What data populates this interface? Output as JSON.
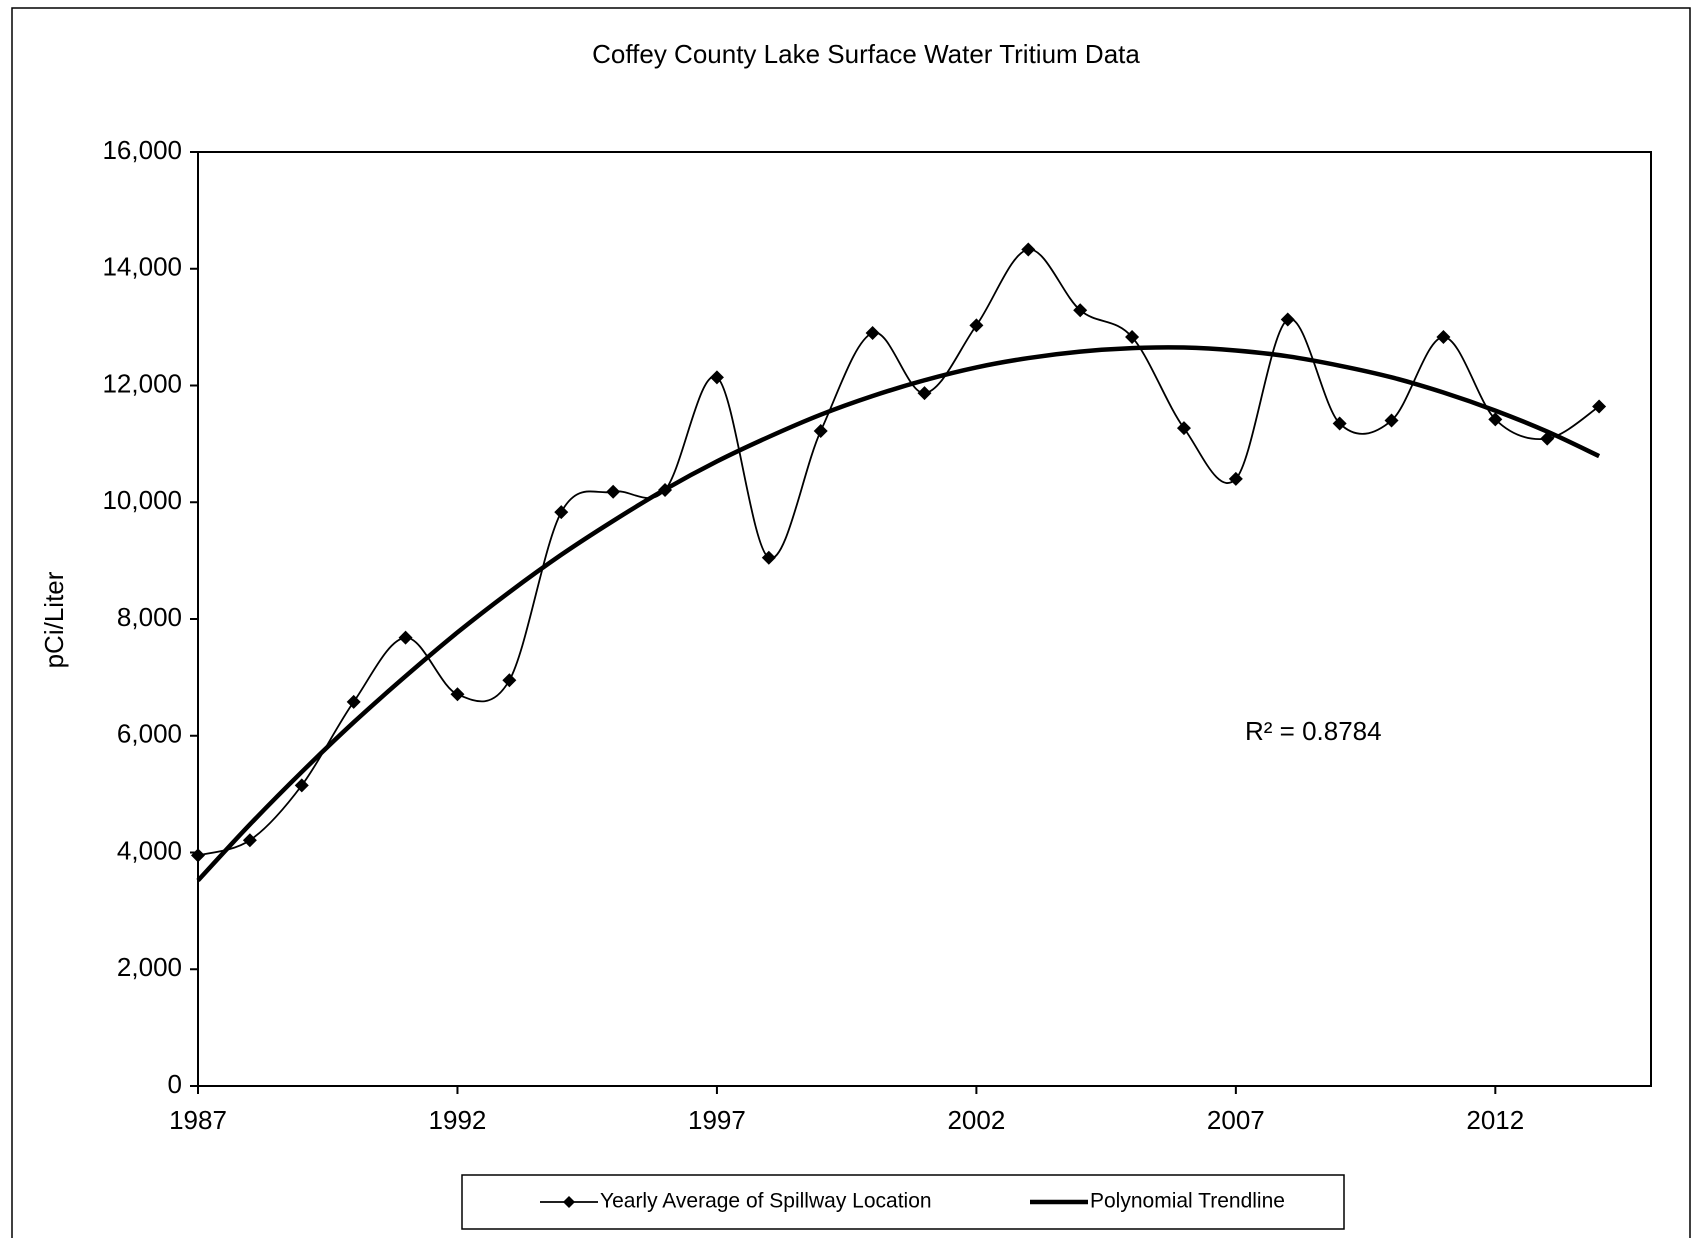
{
  "chart_data": {
    "type": "line",
    "title": "Coffey County Lake Surface Water Tritium Data",
    "y_label": "pCi/Liter",
    "annotation": "R² = 0.8784",
    "x": [
      1987,
      1988,
      1989,
      1990,
      1991,
      1992,
      1993,
      1994,
      1995,
      1996,
      1997,
      1998,
      1999,
      2000,
      2001,
      2002,
      2003,
      2004,
      2005,
      2006,
      2007,
      2008,
      2009,
      2010,
      2011,
      2012,
      2013,
      2014
    ],
    "series": [
      {
        "name": "Yearly Average of Spillway Location",
        "color": "#000000",
        "smooth": true,
        "marker": "diamond",
        "values": [
          3950,
          4210,
          5150,
          6580,
          7680,
          6710,
          6950,
          9830,
          10180,
          10210,
          12140,
          9050,
          11220,
          12900,
          11870,
          13030,
          14330,
          13290,
          12830,
          11270,
          10400,
          13130,
          11350,
          11400,
          12830,
          11420,
          11090,
          11640
        ]
      },
      {
        "name": "Polynomial Trendline",
        "color": "#000000",
        "smooth": true,
        "marker": "none",
        "values": [
          3520,
          4480,
          5380,
          6230,
          7020,
          7770,
          8460,
          9100,
          9680,
          10220,
          10700,
          11120,
          11500,
          11820,
          12090,
          12310,
          12470,
          12580,
          12640,
          12650,
          12600,
          12500,
          12340,
          12140,
          11880,
          11570,
          11210,
          10790
        ]
      }
    ],
    "xlim": [
      1987,
      2015
    ],
    "xticks": [
      1987,
      1992,
      1997,
      2002,
      2007,
      2012
    ],
    "ylim": [
      0,
      16000
    ],
    "yticks": [
      0,
      {
        "value": 2000,
        "label": "2,000"
      },
      {
        "value": 4000,
        "label": "4,000"
      },
      {
        "value": 6000,
        "label": "6,000"
      },
      {
        "value": 8000,
        "label": "8,000"
      },
      {
        "value": 10000,
        "label": "10,000"
      },
      {
        "value": 12000,
        "label": "12,000"
      },
      {
        "value": 14000,
        "label": "14,000"
      },
      {
        "value": 16000,
        "label": "16,000"
      }
    ],
    "grid": false,
    "legend": "bottom"
  }
}
